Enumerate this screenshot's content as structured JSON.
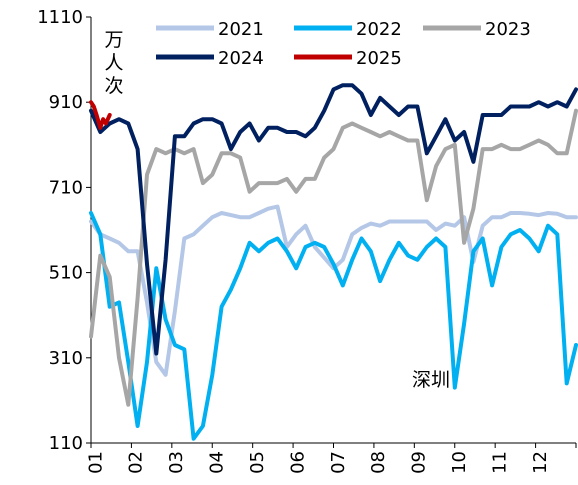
{
  "chart_data": {
    "type": "line",
    "unit_label": "万人次",
    "annotation": "深圳",
    "ylim": [
      110,
      1110
    ],
    "yticks": [
      110,
      310,
      510,
      710,
      910,
      1110
    ],
    "x_tick_labels": [
      "01",
      "02",
      "03",
      "04",
      "05",
      "06",
      "07",
      "08",
      "09",
      "10",
      "11",
      "12"
    ],
    "x_week_range": [
      1,
      53
    ],
    "grid": false,
    "legend_position": "top",
    "series": [
      {
        "name": "2021",
        "color": "#B4C7E7",
        "width": 4,
        "x": [
          1,
          2,
          3,
          4,
          5,
          6,
          7,
          8,
          9,
          10,
          11,
          12,
          13,
          14,
          15,
          16,
          17,
          18,
          19,
          20,
          21,
          22,
          23,
          24,
          25,
          26,
          27,
          28,
          29,
          30,
          31,
          32,
          33,
          34,
          35,
          36,
          37,
          38,
          39,
          40,
          41,
          42,
          43,
          44,
          45,
          46,
          47,
          48,
          49,
          50,
          51,
          52,
          53
        ],
        "y": [
          630,
          600,
          590,
          580,
          560,
          560,
          440,
          300,
          270,
          420,
          590,
          600,
          620,
          640,
          650,
          645,
          640,
          640,
          650,
          660,
          665,
          570,
          600,
          620,
          570,
          545,
          520,
          540,
          600,
          615,
          625,
          620,
          630,
          630,
          630,
          630,
          630,
          610,
          625,
          620,
          640,
          535,
          620,
          640,
          640,
          650,
          650,
          648,
          645,
          650,
          648,
          640,
          640
        ]
      },
      {
        "name": "2022",
        "color": "#00B0F0",
        "width": 4,
        "x": [
          1,
          2,
          3,
          4,
          5,
          6,
          7,
          8,
          9,
          10,
          11,
          12,
          13,
          14,
          15,
          16,
          17,
          18,
          19,
          20,
          21,
          22,
          23,
          24,
          25,
          26,
          27,
          28,
          29,
          30,
          31,
          32,
          33,
          34,
          35,
          36,
          37,
          38,
          39,
          40,
          41,
          42,
          43,
          44,
          45,
          46,
          47,
          48,
          49,
          50,
          51,
          52,
          53
        ],
        "y": [
          650,
          600,
          430,
          440,
          300,
          150,
          300,
          520,
          400,
          340,
          330,
          120,
          150,
          270,
          430,
          470,
          520,
          580,
          560,
          580,
          590,
          560,
          520,
          570,
          580,
          570,
          530,
          480,
          540,
          590,
          560,
          490,
          540,
          580,
          550,
          540,
          570,
          590,
          570,
          240,
          390,
          560,
          590,
          480,
          570,
          600,
          610,
          590,
          560,
          620,
          600,
          250,
          340
        ]
      },
      {
        "name": "2023",
        "color": "#A6A6A6",
        "width": 4,
        "x": [
          1,
          2,
          3,
          4,
          5,
          6,
          7,
          8,
          9,
          10,
          11,
          12,
          13,
          14,
          15,
          16,
          17,
          18,
          19,
          20,
          21,
          22,
          23,
          24,
          25,
          26,
          27,
          28,
          29,
          30,
          31,
          32,
          33,
          34,
          35,
          36,
          37,
          38,
          39,
          40,
          41,
          42,
          43,
          44,
          45,
          46,
          47,
          48,
          49,
          50,
          51,
          52,
          53
        ],
        "y": [
          360,
          550,
          500,
          310,
          200,
          450,
          740,
          800,
          790,
          800,
          790,
          800,
          720,
          740,
          790,
          790,
          780,
          700,
          720,
          720,
          720,
          730,
          700,
          730,
          730,
          780,
          800,
          850,
          860,
          850,
          840,
          830,
          840,
          830,
          820,
          820,
          680,
          760,
          800,
          810,
          580,
          660,
          800,
          800,
          810,
          800,
          800,
          810,
          820,
          810,
          790,
          790,
          890
        ]
      },
      {
        "name": "2024",
        "color": "#002060",
        "width": 4,
        "x": [
          1,
          2,
          3,
          4,
          5,
          6,
          7,
          8,
          9,
          10,
          11,
          12,
          13,
          14,
          15,
          16,
          17,
          18,
          19,
          20,
          21,
          22,
          23,
          24,
          25,
          26,
          27,
          28,
          29,
          30,
          31,
          32,
          33,
          34,
          35,
          36,
          37,
          38,
          39,
          40,
          41,
          42,
          43,
          44,
          45,
          46,
          47,
          48,
          49,
          50,
          51,
          52,
          53
        ],
        "y": [
          890,
          840,
          860,
          870,
          860,
          800,
          530,
          320,
          540,
          830,
          830,
          860,
          870,
          870,
          860,
          800,
          840,
          860,
          820,
          850,
          850,
          840,
          840,
          830,
          850,
          890,
          940,
          950,
          950,
          930,
          880,
          920,
          900,
          880,
          900,
          900,
          790,
          830,
          870,
          820,
          840,
          770,
          880,
          880,
          880,
          900,
          900,
          900,
          910,
          900,
          910,
          900,
          940
        ]
      },
      {
        "name": "2025",
        "color": "#C00000",
        "width": 4,
        "x": [
          1,
          1.3,
          1.6,
          2,
          2.3,
          2.6,
          3
        ],
        "y": [
          910,
          900,
          880,
          850,
          870,
          860,
          880
        ]
      }
    ]
  }
}
